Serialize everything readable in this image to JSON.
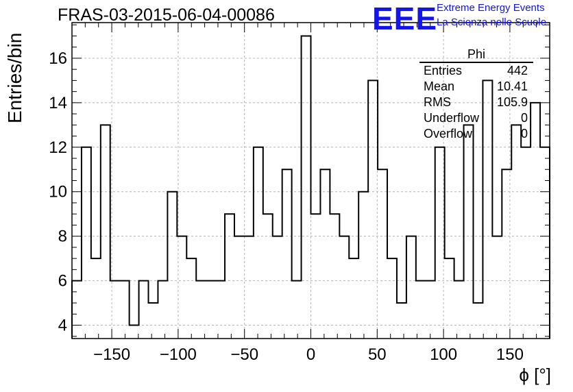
{
  "title": "FRAS-03-2015-06-04-00086",
  "logo": {
    "mark": "EEE",
    "line1": "Extreme Energy Events",
    "line2": "La Scienza nelle Scuole",
    "color": "#1414e6"
  },
  "stats": {
    "name": "Phi",
    "rows": [
      {
        "label": "Entries",
        "value": "442"
      },
      {
        "label": "Mean",
        "value": "10.41"
      },
      {
        "label": "RMS",
        "value": "105.9"
      },
      {
        "label": "Underflow",
        "value": "0"
      },
      {
        "label": "Overflow",
        "value": "0"
      }
    ]
  },
  "chart_data": {
    "type": "bar",
    "histogram": true,
    "title": "FRAS-03-2015-06-04-00086",
    "xlabel": "ϕ [°]",
    "ylabel": "Entries/bin",
    "xlim": [
      -180,
      180
    ],
    "ylim": [
      3.4,
      17.6
    ],
    "bin_width": 7.2,
    "xticks": [
      -150,
      -100,
      -50,
      0,
      50,
      100,
      150
    ],
    "yticks": [
      4,
      6,
      8,
      10,
      12,
      14,
      16
    ],
    "grid": true,
    "values": [
      6,
      12,
      7,
      13,
      6,
      6,
      4,
      6,
      5,
      6,
      10,
      8,
      7,
      6,
      6,
      6,
      9,
      8,
      8,
      12,
      9,
      8,
      11,
      6,
      17,
      9,
      11,
      9,
      8,
      7,
      10,
      15,
      11,
      7,
      5,
      8,
      6,
      6,
      12,
      7,
      6,
      13,
      5,
      15,
      8,
      11,
      13,
      12,
      14,
      12
    ]
  }
}
